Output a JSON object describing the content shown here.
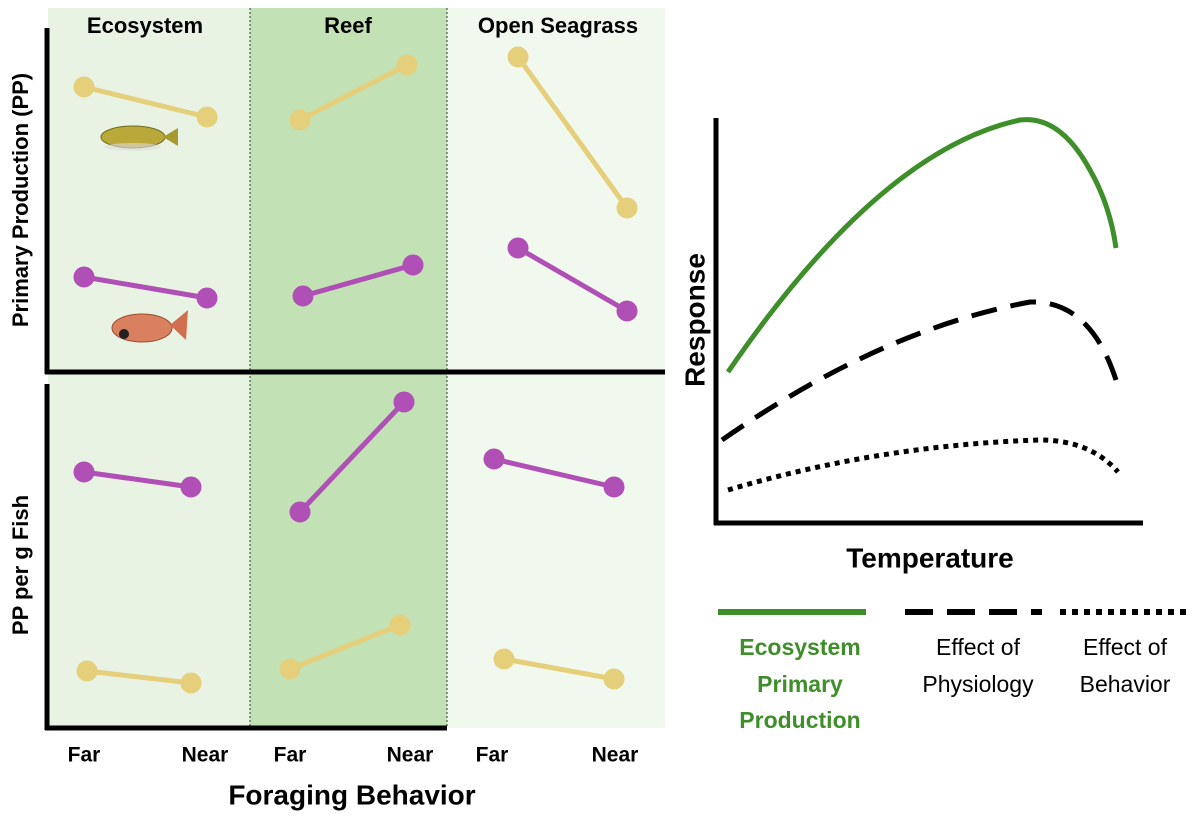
{
  "panel": {
    "columns": [
      "Ecosystem",
      "Reef",
      "Open Seagrass"
    ],
    "top_label": "Primary Production (PP)",
    "bottom_label": "PP per g Fish",
    "x_ticks": [
      "Far",
      "Near",
      "Far",
      "Near",
      "Far",
      "Near"
    ],
    "x_label": "Foraging Behavior"
  },
  "curve_plot": {
    "y_label": "Response",
    "x_label": "Temperature",
    "legend": [
      {
        "lines": [
          "Ecosystem",
          "Primary",
          "Production"
        ]
      },
      {
        "lines": [
          "Effect of",
          "Physiology"
        ]
      },
      {
        "lines": [
          "Effect of",
          "Behavior"
        ]
      }
    ]
  }
}
